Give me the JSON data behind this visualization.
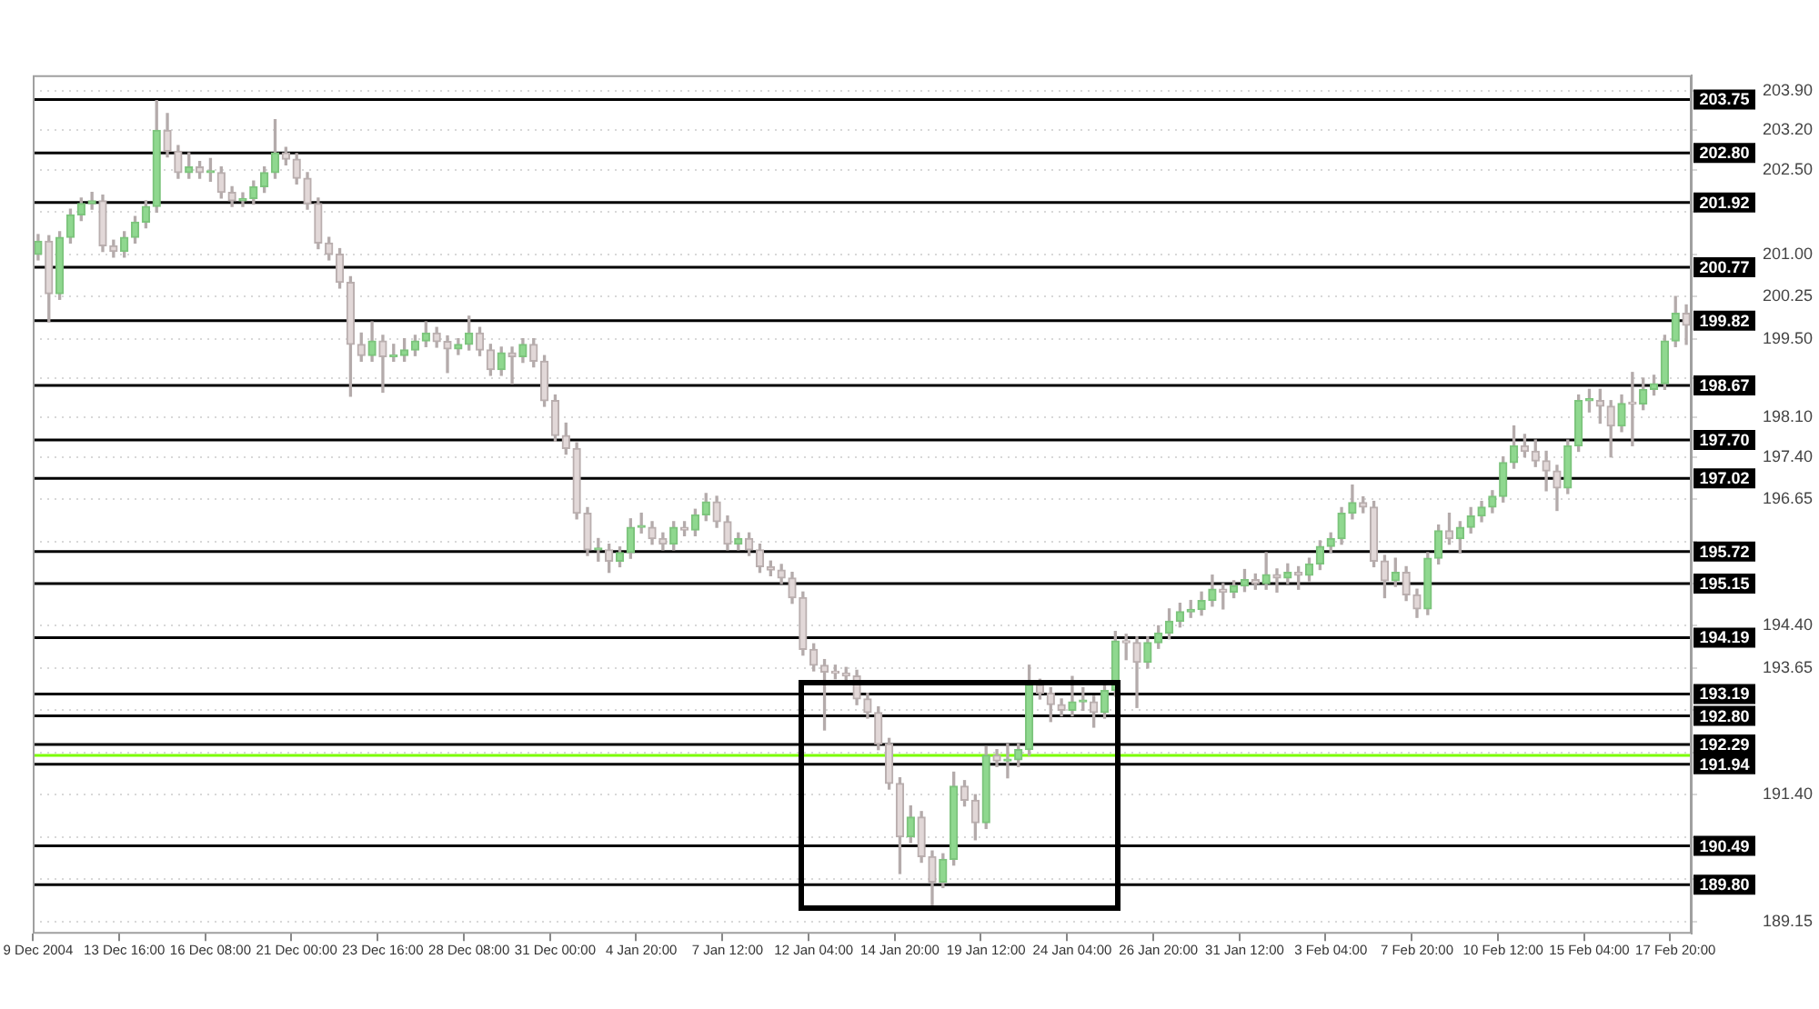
{
  "chart_data": {
    "type": "candlestick",
    "categories": [
      "9 Dec 2004",
      null,
      null,
      null,
      null,
      null,
      null,
      null,
      "13 Dec 16:00",
      null,
      null,
      null,
      null,
      null,
      null,
      null,
      "16 Dec 08:00",
      null,
      null,
      null,
      null,
      null,
      null,
      null,
      "21 Dec 00:00",
      null,
      null,
      null,
      null,
      null,
      null,
      null,
      "23 Dec 16:00",
      null,
      null,
      null,
      null,
      null,
      null,
      null,
      "28 Dec 08:00",
      null,
      null,
      null,
      null,
      null,
      null,
      null,
      "31 Dec 00:00",
      null,
      null,
      null,
      null,
      null,
      null,
      null,
      "4 Jan 20:00",
      null,
      null,
      null,
      null,
      null,
      null,
      null,
      "7 Jan 12:00",
      null,
      null,
      null,
      null,
      null,
      null,
      null,
      "12 Jan 04:00",
      null,
      null,
      null,
      null,
      null,
      null,
      null,
      "14 Jan 20:00",
      null,
      null,
      null,
      null,
      null,
      null,
      null,
      "19 Jan 12:00",
      null,
      null,
      null,
      null,
      null,
      null,
      null,
      "24 Jan 04:00",
      null,
      null,
      null,
      null,
      null,
      null,
      null,
      "26 Jan 20:00",
      null,
      null,
      null,
      null,
      null,
      null,
      null,
      "31 Jan 12:00",
      null,
      null,
      null,
      null,
      null,
      null,
      null,
      "3 Feb 04:00",
      null,
      null,
      null,
      null,
      null,
      null,
      null,
      "7 Feb 20:00",
      null,
      null,
      null,
      null,
      null,
      null,
      null,
      "10 Feb 12:00",
      null,
      null,
      null,
      null,
      null,
      null,
      null,
      "15 Feb 04:00",
      null,
      null,
      null,
      null,
      null,
      null,
      null,
      "17 Feb 20:00",
      null
    ],
    "ohlc": [
      [
        201.0,
        201.35,
        200.9,
        201.23
      ],
      [
        201.23,
        201.33,
        199.8,
        200.3
      ],
      [
        200.3,
        201.4,
        200.2,
        201.3
      ],
      [
        201.3,
        201.8,
        201.2,
        201.7
      ],
      [
        201.7,
        202.0,
        201.6,
        201.9
      ],
      [
        201.9,
        202.1,
        201.8,
        201.95
      ],
      [
        201.95,
        202.05,
        201.05,
        201.15
      ],
      [
        201.15,
        201.25,
        200.95,
        201.05
      ],
      [
        201.05,
        201.4,
        200.95,
        201.3
      ],
      [
        201.3,
        201.67,
        201.2,
        201.57
      ],
      [
        201.57,
        201.95,
        201.47,
        201.85
      ],
      [
        201.85,
        203.73,
        201.75,
        203.2
      ],
      [
        203.2,
        203.5,
        202.73,
        202.83
      ],
      [
        202.83,
        202.93,
        202.35,
        202.45
      ],
      [
        202.45,
        202.8,
        202.35,
        202.55
      ],
      [
        202.55,
        202.65,
        202.35,
        202.45
      ],
      [
        202.45,
        202.7,
        202.3,
        202.45
      ],
      [
        202.45,
        202.55,
        202.0,
        202.1
      ],
      [
        202.1,
        202.2,
        201.85,
        201.95
      ],
      [
        201.95,
        202.09,
        201.85,
        201.99
      ],
      [
        201.99,
        202.3,
        201.89,
        202.2
      ],
      [
        202.2,
        202.55,
        202.1,
        202.45
      ],
      [
        202.45,
        203.39,
        202.35,
        202.8
      ],
      [
        202.8,
        202.9,
        202.59,
        202.69
      ],
      [
        202.69,
        202.79,
        202.25,
        202.35
      ],
      [
        202.35,
        202.45,
        201.8,
        201.9
      ],
      [
        201.9,
        202.0,
        201.1,
        201.2
      ],
      [
        201.2,
        201.3,
        200.9,
        201.0
      ],
      [
        201.0,
        201.1,
        200.4,
        200.5
      ],
      [
        200.5,
        200.6,
        198.48,
        199.4
      ],
      [
        199.4,
        199.6,
        199.1,
        199.2
      ],
      [
        199.2,
        199.8,
        199.1,
        199.46
      ],
      [
        199.46,
        199.56,
        198.55,
        199.18
      ],
      [
        199.18,
        199.4,
        199.1,
        199.2
      ],
      [
        199.2,
        199.5,
        199.1,
        199.3
      ],
      [
        199.3,
        199.56,
        199.2,
        199.46
      ],
      [
        199.46,
        199.8,
        199.36,
        199.6
      ],
      [
        199.6,
        199.7,
        199.35,
        199.45
      ],
      [
        199.45,
        199.55,
        198.9,
        199.32
      ],
      [
        199.32,
        199.5,
        199.22,
        199.4
      ],
      [
        199.4,
        199.9,
        199.3,
        199.6
      ],
      [
        199.6,
        199.7,
        199.2,
        199.3
      ],
      [
        199.3,
        199.4,
        198.85,
        198.95
      ],
      [
        198.95,
        199.35,
        198.85,
        199.25
      ],
      [
        199.25,
        199.35,
        198.7,
        199.18
      ],
      [
        199.18,
        199.5,
        199.08,
        199.4
      ],
      [
        199.4,
        199.5,
        199.0,
        199.1
      ],
      [
        199.1,
        199.2,
        198.3,
        198.4
      ],
      [
        198.4,
        198.5,
        197.68,
        197.78
      ],
      [
        197.78,
        198.0,
        197.45,
        197.55
      ],
      [
        197.55,
        197.65,
        196.3,
        196.4
      ],
      [
        196.4,
        196.5,
        195.65,
        195.75
      ],
      [
        195.75,
        195.95,
        195.55,
        195.75
      ],
      [
        195.75,
        195.85,
        195.35,
        195.55
      ],
      [
        195.55,
        195.8,
        195.45,
        195.7
      ],
      [
        195.7,
        196.3,
        195.6,
        196.15
      ],
      [
        196.15,
        196.4,
        196.05,
        196.15
      ],
      [
        196.15,
        196.25,
        195.85,
        195.95
      ],
      [
        195.95,
        196.05,
        195.75,
        195.85
      ],
      [
        195.85,
        196.25,
        195.75,
        196.15
      ],
      [
        196.15,
        196.25,
        196.0,
        196.1
      ],
      [
        196.1,
        196.47,
        196.0,
        196.37
      ],
      [
        196.37,
        196.75,
        196.27,
        196.6
      ],
      [
        196.6,
        196.7,
        196.15,
        196.25
      ],
      [
        196.25,
        196.35,
        195.75,
        195.85
      ],
      [
        195.85,
        196.05,
        195.75,
        195.95
      ],
      [
        195.95,
        196.05,
        195.65,
        195.75
      ],
      [
        195.75,
        195.85,
        195.35,
        195.45
      ],
      [
        195.45,
        195.55,
        195.29,
        195.39
      ],
      [
        195.39,
        195.49,
        195.15,
        195.25
      ],
      [
        195.25,
        195.35,
        194.8,
        194.9
      ],
      [
        194.9,
        195.0,
        193.88,
        193.98
      ],
      [
        193.98,
        194.08,
        193.6,
        193.7
      ],
      [
        193.7,
        193.8,
        192.55,
        193.58
      ],
      [
        193.58,
        193.7,
        193.46,
        193.56
      ],
      [
        193.56,
        193.66,
        193.41,
        193.51
      ],
      [
        193.51,
        193.61,
        193.0,
        193.1
      ],
      [
        193.1,
        193.2,
        192.76,
        192.86
      ],
      [
        192.86,
        192.96,
        192.2,
        192.3
      ],
      [
        192.3,
        192.4,
        191.5,
        191.6
      ],
      [
        191.6,
        191.7,
        190.0,
        190.65
      ],
      [
        190.65,
        191.2,
        190.55,
        191.0
      ],
      [
        191.0,
        191.1,
        190.2,
        190.3
      ],
      [
        190.3,
        190.4,
        189.43,
        189.85
      ],
      [
        189.85,
        190.35,
        189.75,
        190.25
      ],
      [
        190.25,
        191.8,
        190.15,
        191.55
      ],
      [
        191.55,
        191.65,
        191.2,
        191.3
      ],
      [
        191.3,
        191.4,
        190.6,
        190.9
      ],
      [
        190.9,
        192.25,
        190.8,
        192.1
      ],
      [
        192.1,
        192.2,
        191.9,
        192.0
      ],
      [
        192.0,
        192.3,
        191.7,
        192.02
      ],
      [
        192.02,
        192.3,
        191.9,
        192.2
      ],
      [
        192.2,
        193.7,
        192.1,
        193.35
      ],
      [
        193.35,
        193.45,
        193.1,
        193.2
      ],
      [
        193.2,
        193.3,
        192.7,
        193.0
      ],
      [
        193.0,
        193.1,
        192.8,
        192.9
      ],
      [
        192.9,
        193.5,
        192.8,
        193.05
      ],
      [
        193.05,
        193.3,
        192.9,
        193.05
      ],
      [
        193.05,
        193.15,
        192.6,
        192.86
      ],
      [
        192.86,
        193.35,
        192.76,
        193.25
      ],
      [
        193.25,
        194.3,
        193.15,
        194.13
      ],
      [
        194.13,
        194.25,
        193.8,
        194.1
      ],
      [
        194.1,
        194.2,
        192.95,
        193.75
      ],
      [
        193.75,
        194.2,
        193.65,
        194.1
      ],
      [
        194.1,
        194.4,
        194.0,
        194.27
      ],
      [
        194.27,
        194.7,
        194.17,
        194.48
      ],
      [
        194.48,
        194.8,
        194.38,
        194.65
      ],
      [
        194.65,
        194.85,
        194.55,
        194.69
      ],
      [
        194.69,
        195.0,
        194.59,
        194.85
      ],
      [
        194.85,
        195.3,
        194.75,
        195.05
      ],
      [
        195.05,
        195.15,
        194.7,
        195.0
      ],
      [
        195.0,
        195.2,
        194.9,
        195.11
      ],
      [
        195.11,
        195.4,
        195.01,
        195.22
      ],
      [
        195.22,
        195.32,
        195.05,
        195.15
      ],
      [
        195.15,
        195.7,
        195.05,
        195.31
      ],
      [
        195.31,
        195.41,
        195.0,
        195.25
      ],
      [
        195.25,
        195.5,
        195.15,
        195.35
      ],
      [
        195.35,
        195.45,
        195.05,
        195.3
      ],
      [
        195.3,
        195.6,
        195.2,
        195.5
      ],
      [
        195.5,
        195.91,
        195.4,
        195.81
      ],
      [
        195.81,
        196.05,
        195.71,
        195.95
      ],
      [
        195.95,
        196.5,
        195.85,
        196.4
      ],
      [
        196.4,
        196.9,
        196.3,
        196.59
      ],
      [
        196.59,
        196.69,
        196.41,
        196.51
      ],
      [
        196.51,
        196.61,
        195.45,
        195.55
      ],
      [
        195.55,
        195.65,
        194.9,
        195.2
      ],
      [
        195.2,
        195.6,
        195.1,
        195.35
      ],
      [
        195.35,
        195.45,
        194.85,
        194.95
      ],
      [
        194.95,
        195.05,
        194.55,
        194.7
      ],
      [
        194.7,
        195.7,
        194.6,
        195.6
      ],
      [
        195.6,
        196.19,
        195.5,
        196.09
      ],
      [
        196.09,
        196.4,
        195.85,
        195.95
      ],
      [
        195.95,
        196.25,
        195.7,
        196.15
      ],
      [
        196.15,
        196.5,
        196.05,
        196.35
      ],
      [
        196.35,
        196.61,
        196.25,
        196.51
      ],
      [
        196.51,
        196.8,
        196.41,
        196.7
      ],
      [
        196.7,
        197.4,
        196.6,
        197.3
      ],
      [
        197.3,
        197.95,
        197.2,
        197.6
      ],
      [
        197.6,
        197.8,
        197.4,
        197.5
      ],
      [
        197.5,
        197.7,
        197.23,
        197.33
      ],
      [
        197.33,
        197.5,
        196.8,
        197.15
      ],
      [
        197.15,
        197.25,
        196.45,
        196.85
      ],
      [
        196.85,
        197.7,
        196.75,
        197.6
      ],
      [
        197.6,
        198.5,
        197.5,
        198.4
      ],
      [
        198.4,
        198.6,
        198.2,
        198.4
      ],
      [
        198.4,
        198.6,
        198.0,
        198.3
      ],
      [
        198.3,
        198.4,
        197.4,
        197.95
      ],
      [
        197.95,
        198.5,
        197.85,
        198.35
      ],
      [
        198.35,
        198.9,
        197.6,
        198.34
      ],
      [
        198.34,
        198.8,
        198.24,
        198.6
      ],
      [
        198.6,
        198.85,
        198.5,
        198.7
      ],
      [
        198.7,
        199.56,
        198.6,
        199.46
      ],
      [
        199.46,
        200.25,
        199.36,
        199.95
      ],
      [
        199.95,
        200.1,
        199.4,
        199.74
      ]
    ],
    "ylim": [
      188.93,
      204.18
    ],
    "yticks": [
      {
        "value": 203.9,
        "label": "203.90"
      },
      {
        "value": 203.2,
        "label": "203.20"
      },
      {
        "value": 202.5,
        "label": "202.50"
      },
      {
        "value": 201.75,
        "label": null
      },
      {
        "value": 201.0,
        "label": "201.00"
      },
      {
        "value": 200.25,
        "label": "200.25"
      },
      {
        "value": 199.5,
        "label": "199.50"
      },
      {
        "value": 198.8,
        "label": null
      },
      {
        "value": 198.1,
        "label": "198.10"
      },
      {
        "value": 197.4,
        "label": "197.40"
      },
      {
        "value": 196.65,
        "label": "196.65"
      },
      {
        "value": 195.9,
        "label": null
      },
      {
        "value": 195.15,
        "label": null
      },
      {
        "value": 194.4,
        "label": "194.40"
      },
      {
        "value": 193.65,
        "label": "193.65"
      },
      {
        "value": 192.9,
        "label": null
      },
      {
        "value": 192.15,
        "label": null
      },
      {
        "value": 191.4,
        "label": "191.40"
      },
      {
        "value": 190.65,
        "label": null
      },
      {
        "value": 189.9,
        "label": null
      },
      {
        "value": 189.15,
        "label": "189.15"
      }
    ],
    "grid": "y",
    "legend": false,
    "ref_lines": [
      {
        "axis": "y",
        "value": 203.75,
        "label": "203.75",
        "color": "#000000"
      },
      {
        "axis": "y",
        "value": 202.8,
        "label": "202.80",
        "color": "#000000"
      },
      {
        "axis": "y",
        "value": 201.92,
        "label": "201.92",
        "color": "#000000"
      },
      {
        "axis": "y",
        "value": 200.77,
        "label": "200.77",
        "color": "#000000"
      },
      {
        "axis": "y",
        "value": 199.82,
        "label": "199.82",
        "color": "#000000"
      },
      {
        "axis": "y",
        "value": 198.67,
        "label": "198.67",
        "color": "#000000"
      },
      {
        "axis": "y",
        "value": 197.7,
        "label": "197.70",
        "color": "#000000"
      },
      {
        "axis": "y",
        "value": 197.02,
        "label": "197.02",
        "color": "#000000"
      },
      {
        "axis": "y",
        "value": 195.72,
        "label": "195.72",
        "color": "#000000"
      },
      {
        "axis": "y",
        "value": 195.15,
        "label": "195.15",
        "color": "#000000"
      },
      {
        "axis": "y",
        "value": 194.19,
        "label": "194.19",
        "color": "#000000"
      },
      {
        "axis": "y",
        "value": 193.19,
        "label": "193.19",
        "color": "#000000"
      },
      {
        "axis": "y",
        "value": 192.8,
        "label": "192.80",
        "color": "#000000"
      },
      {
        "axis": "y",
        "value": 192.29,
        "label": "192.29",
        "color": "#000000"
      },
      {
        "axis": "y",
        "value": 192.1,
        "label": null,
        "color": "#7cfc00"
      },
      {
        "axis": "y",
        "value": 191.94,
        "label": "191.94",
        "color": "#000000"
      },
      {
        "axis": "y",
        "value": 190.49,
        "label": "190.49",
        "color": "#000000"
      },
      {
        "axis": "y",
        "value": 189.8,
        "label": "189.80",
        "color": "#000000"
      }
    ]
  }
}
